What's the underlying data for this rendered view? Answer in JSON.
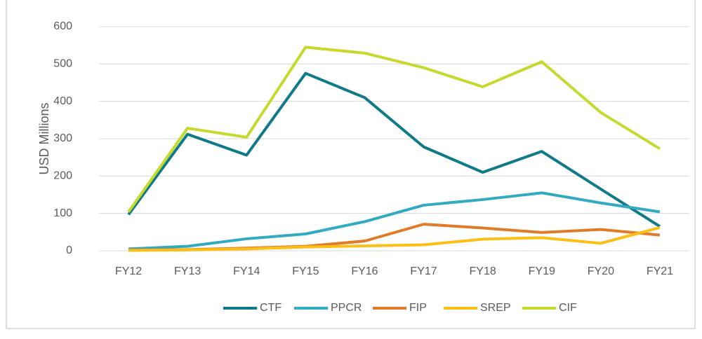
{
  "chart_data": {
    "type": "line",
    "y_label": "USD Millions",
    "categories": [
      "FY12",
      "FY13",
      "FY14",
      "FY15",
      "FY16",
      "FY17",
      "FY18",
      "FY19",
      "FY20",
      "FY21"
    ],
    "series": [
      {
        "name": "CTF",
        "color": "#0f7a89",
        "values": [
          97,
          312,
          256,
          475,
          410,
          278,
          210,
          266,
          165,
          65
        ]
      },
      {
        "name": "PPCR",
        "color": "#32abc2",
        "values": [
          5,
          12,
          32,
          45,
          78,
          122,
          137,
          155,
          128,
          104
        ]
      },
      {
        "name": "FIP",
        "color": "#e07b2a",
        "values": [
          2,
          3,
          7,
          12,
          26,
          71,
          61,
          49,
          57,
          42
        ]
      },
      {
        "name": "SREP",
        "color": "#fcbf17",
        "values": [
          1,
          2,
          5,
          10,
          13,
          16,
          31,
          35,
          20,
          62
        ]
      },
      {
        "name": "CIF",
        "color": "#c6d92e",
        "values": [
          104,
          328,
          304,
          545,
          529,
          490,
          439,
          506,
          370,
          273
        ]
      }
    ],
    "ylim": [
      0,
      600
    ],
    "yticks": [
      0,
      100,
      200,
      300,
      400,
      500,
      600
    ],
    "grid": true,
    "legend": "bottom"
  }
}
